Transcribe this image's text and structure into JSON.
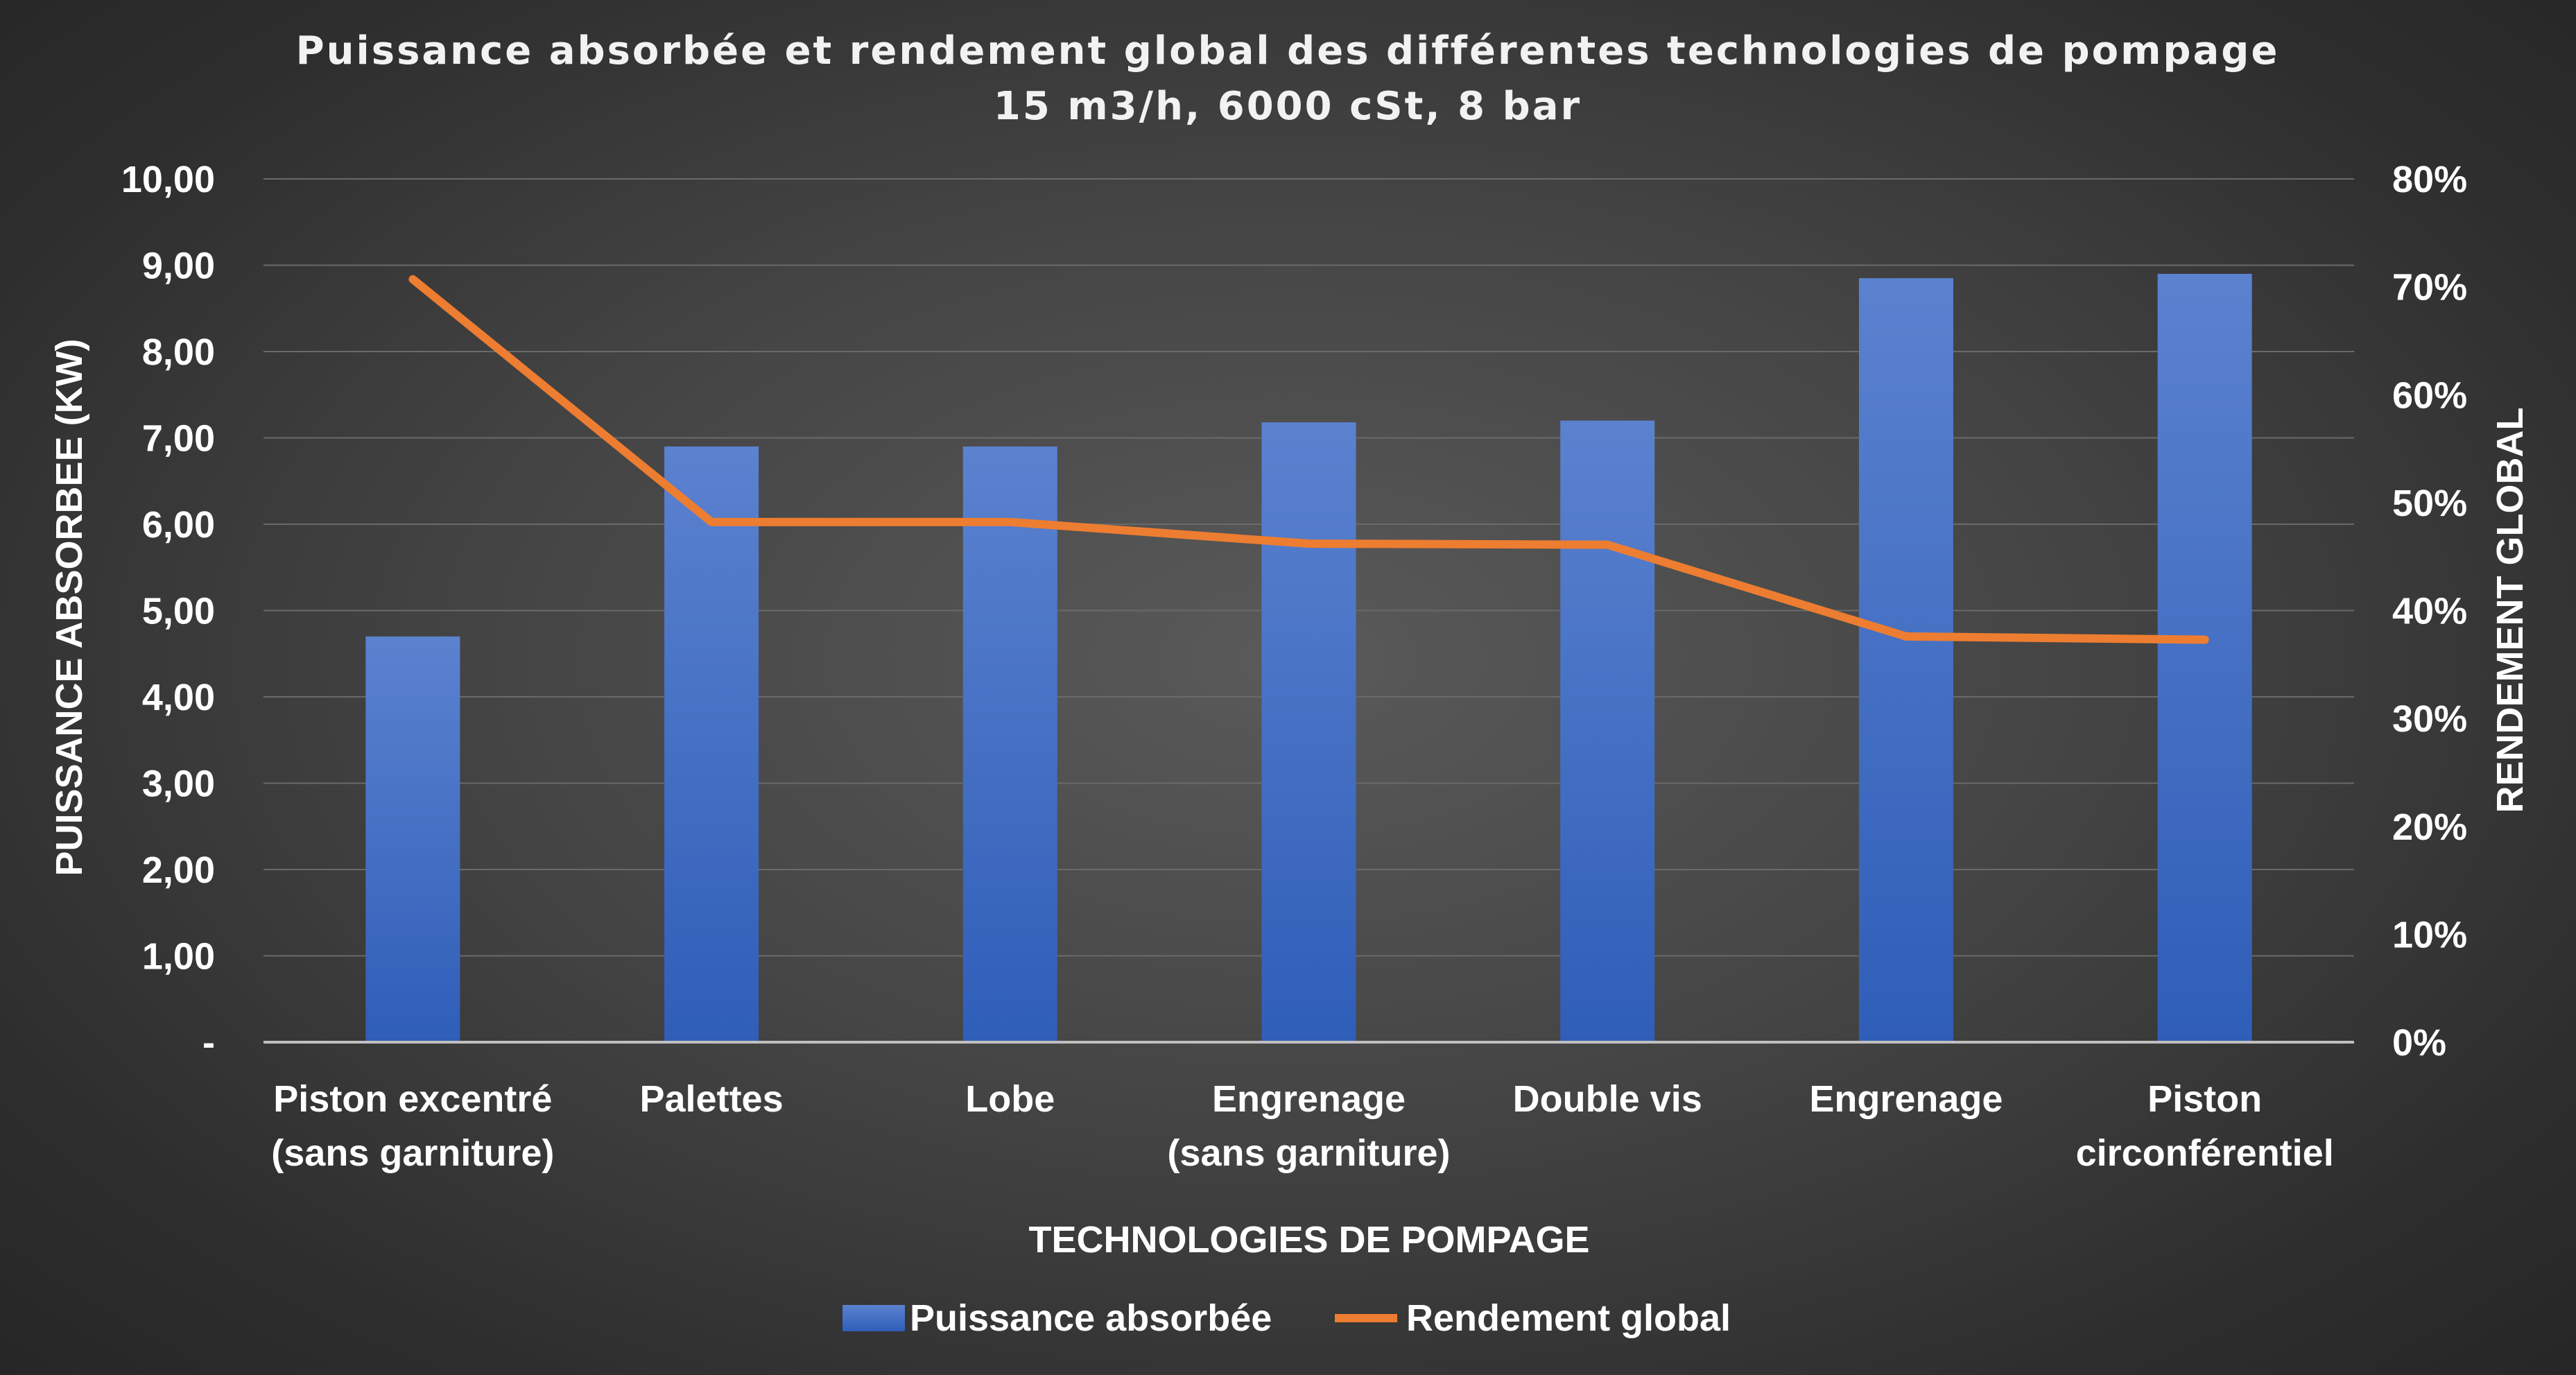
{
  "chart_data": {
    "type": "bar",
    "title": "Puissance absorbée et rendement global des différentes technologies de pompage",
    "subtitle": "15 m3/h, 6000 cSt, 8 bar",
    "xlabel": "TECHNOLOGIES DE POMPAGE",
    "ylabel": "PUISSANCE ABSORBEE (KW)",
    "y2label": "RENDEMENT GLOBAL",
    "categories": [
      [
        "Piston excentré",
        "(sans garniture)"
      ],
      [
        "Palettes"
      ],
      [
        "Lobe"
      ],
      [
        "Engrenage",
        "(sans garniture)"
      ],
      [
        "Double vis"
      ],
      [
        "Engrenage"
      ],
      [
        "Piston",
        "circonférentiel"
      ]
    ],
    "ylim": [
      0,
      10
    ],
    "y2lim": [
      0,
      0.8
    ],
    "y_ticks": [
      "-",
      "1,00",
      "2,00",
      "3,00",
      "4,00",
      "5,00",
      "6,00",
      "7,00",
      "8,00",
      "9,00",
      "10,00"
    ],
    "y2_ticks": [
      "0%",
      "10%",
      "20%",
      "30%",
      "40%",
      "50%",
      "60%",
      "70%",
      "80%"
    ],
    "grid": true,
    "legend_position": "bottom",
    "series": [
      {
        "name": "Puissance absorbée",
        "type": "bar",
        "axis": "left",
        "color": "#4472c4",
        "values": [
          4.7,
          6.9,
          6.9,
          7.18,
          7.2,
          8.85,
          8.9
        ]
      },
      {
        "name": "Rendement global",
        "type": "line",
        "axis": "right",
        "color": "#ed7d31",
        "values": [
          0.707,
          0.482,
          0.482,
          0.462,
          0.461,
          0.376,
          0.373
        ]
      }
    ]
  }
}
